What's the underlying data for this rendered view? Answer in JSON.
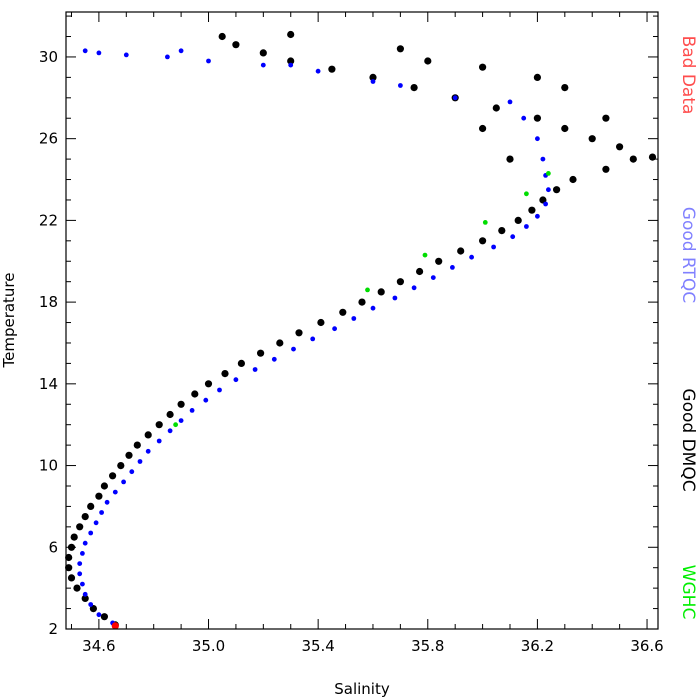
{
  "chart_data": {
    "type": "scatter",
    "title": "",
    "xlabel": "Salinity",
    "ylabel": "Temperature",
    "xlim": [
      34.48,
      36.64
    ],
    "ylim": [
      2,
      32.2
    ],
    "x_ticks": [
      34.6,
      35.0,
      35.4,
      35.8,
      36.2,
      36.6
    ],
    "x_tick_labels": [
      "34.6",
      "35.0",
      "35.4",
      "35.8",
      "36.2",
      "36.6"
    ],
    "y_ticks": [
      2,
      6,
      10,
      14,
      18,
      22,
      26,
      30
    ],
    "y_tick_labels": [
      "2",
      "6",
      "10",
      "14",
      "18",
      "22",
      "26",
      "30"
    ],
    "grid": false,
    "legend_position": "right, vertical",
    "legend": [
      {
        "label": "Bad Data",
        "color": "#ff4d4d"
      },
      {
        "label": "Good RTQC",
        "color": "#8080ff"
      },
      {
        "label": "Good DMQC",
        "color": "#000000"
      },
      {
        "label": "WGHC",
        "color": "#00ee00"
      }
    ],
    "series": [
      {
        "name": "Good DMQC",
        "color": "#000000",
        "marker_size": "large",
        "points": [
          [
            34.66,
            2.2
          ],
          [
            34.62,
            2.6
          ],
          [
            34.58,
            3.0
          ],
          [
            34.55,
            3.5
          ],
          [
            34.52,
            4.0
          ],
          [
            34.5,
            4.5
          ],
          [
            34.49,
            5.0
          ],
          [
            34.49,
            5.5
          ],
          [
            34.5,
            6.0
          ],
          [
            34.51,
            6.5
          ],
          [
            34.53,
            7.0
          ],
          [
            34.55,
            7.5
          ],
          [
            34.57,
            8.0
          ],
          [
            34.6,
            8.5
          ],
          [
            34.62,
            9.0
          ],
          [
            34.65,
            9.5
          ],
          [
            34.68,
            10.0
          ],
          [
            34.71,
            10.5
          ],
          [
            34.74,
            11.0
          ],
          [
            34.78,
            11.5
          ],
          [
            34.82,
            12.0
          ],
          [
            34.86,
            12.5
          ],
          [
            34.9,
            13.0
          ],
          [
            34.95,
            13.5
          ],
          [
            35.0,
            14.0
          ],
          [
            35.06,
            14.5
          ],
          [
            35.12,
            15.0
          ],
          [
            35.19,
            15.5
          ],
          [
            35.26,
            16.0
          ],
          [
            35.33,
            16.5
          ],
          [
            35.41,
            17.0
          ],
          [
            35.49,
            17.5
          ],
          [
            35.56,
            18.0
          ],
          [
            35.63,
            18.5
          ],
          [
            35.7,
            19.0
          ],
          [
            35.77,
            19.5
          ],
          [
            35.84,
            20.0
          ],
          [
            35.92,
            20.5
          ],
          [
            36.0,
            21.0
          ],
          [
            36.07,
            21.5
          ],
          [
            36.13,
            22.0
          ],
          [
            36.18,
            22.5
          ],
          [
            36.22,
            23.0
          ],
          [
            36.27,
            23.5
          ],
          [
            36.33,
            24.0
          ],
          [
            36.45,
            24.5
          ],
          [
            36.55,
            25.0
          ],
          [
            36.62,
            25.1
          ],
          [
            36.5,
            25.6
          ],
          [
            36.4,
            26.0
          ],
          [
            36.3,
            26.5
          ],
          [
            36.2,
            27.0
          ],
          [
            36.05,
            27.5
          ],
          [
            35.9,
            28.0
          ],
          [
            35.75,
            28.5
          ],
          [
            35.6,
            29.0
          ],
          [
            35.45,
            29.4
          ],
          [
            35.3,
            29.8
          ],
          [
            35.2,
            30.2
          ],
          [
            35.1,
            30.6
          ],
          [
            35.05,
            31.0
          ],
          [
            35.3,
            31.1
          ],
          [
            35.7,
            30.4
          ],
          [
            36.0,
            29.5
          ],
          [
            36.3,
            28.5
          ],
          [
            36.45,
            27.0
          ],
          [
            36.0,
            26.5
          ],
          [
            36.1,
            25.0
          ],
          [
            35.8,
            29.8
          ],
          [
            36.2,
            29.0
          ]
        ]
      },
      {
        "name": "Good RTQC",
        "color": "#0000ff",
        "marker_size": "small",
        "points": [
          [
            34.65,
            2.3
          ],
          [
            34.6,
            2.7
          ],
          [
            34.57,
            3.2
          ],
          [
            34.55,
            3.7
          ],
          [
            34.54,
            4.2
          ],
          [
            34.53,
            4.7
          ],
          [
            34.53,
            5.2
          ],
          [
            34.54,
            5.7
          ],
          [
            34.55,
            6.2
          ],
          [
            34.57,
            6.7
          ],
          [
            34.59,
            7.2
          ],
          [
            34.61,
            7.7
          ],
          [
            34.63,
            8.2
          ],
          [
            34.66,
            8.7
          ],
          [
            34.69,
            9.2
          ],
          [
            34.72,
            9.7
          ],
          [
            34.75,
            10.2
          ],
          [
            34.78,
            10.7
          ],
          [
            34.82,
            11.2
          ],
          [
            34.86,
            11.7
          ],
          [
            34.9,
            12.2
          ],
          [
            34.94,
            12.7
          ],
          [
            34.99,
            13.2
          ],
          [
            35.04,
            13.7
          ],
          [
            35.1,
            14.2
          ],
          [
            35.17,
            14.7
          ],
          [
            35.24,
            15.2
          ],
          [
            35.31,
            15.7
          ],
          [
            35.38,
            16.2
          ],
          [
            35.46,
            16.7
          ],
          [
            35.53,
            17.2
          ],
          [
            35.6,
            17.7
          ],
          [
            35.68,
            18.2
          ],
          [
            35.75,
            18.7
          ],
          [
            35.82,
            19.2
          ],
          [
            35.89,
            19.7
          ],
          [
            35.96,
            20.2
          ],
          [
            36.04,
            20.7
          ],
          [
            36.11,
            21.2
          ],
          [
            36.16,
            21.7
          ],
          [
            36.2,
            22.2
          ],
          [
            36.23,
            22.8
          ],
          [
            36.24,
            23.5
          ],
          [
            36.23,
            24.2
          ],
          [
            36.22,
            25.0
          ],
          [
            36.2,
            26.0
          ],
          [
            36.15,
            27.0
          ],
          [
            35.9,
            28.0
          ],
          [
            35.6,
            28.8
          ],
          [
            35.4,
            29.3
          ],
          [
            35.2,
            29.6
          ],
          [
            35.0,
            29.8
          ],
          [
            34.85,
            30.0
          ],
          [
            34.7,
            30.1
          ],
          [
            34.6,
            30.2
          ],
          [
            34.55,
            30.3
          ],
          [
            34.9,
            30.3
          ],
          [
            35.3,
            29.6
          ],
          [
            35.7,
            28.6
          ],
          [
            36.1,
            27.8
          ]
        ]
      },
      {
        "name": "WGHC",
        "color": "#00dd00",
        "marker_size": "small",
        "points": [
          [
            34.88,
            12.0
          ],
          [
            35.58,
            18.6
          ],
          [
            35.79,
            20.3
          ],
          [
            36.01,
            21.9
          ],
          [
            36.16,
            23.3
          ],
          [
            36.24,
            24.3
          ]
        ]
      },
      {
        "name": "Bad Data",
        "color": "#ff0000",
        "marker_size": "large",
        "points": [
          [
            34.66,
            2.15
          ]
        ]
      }
    ]
  }
}
